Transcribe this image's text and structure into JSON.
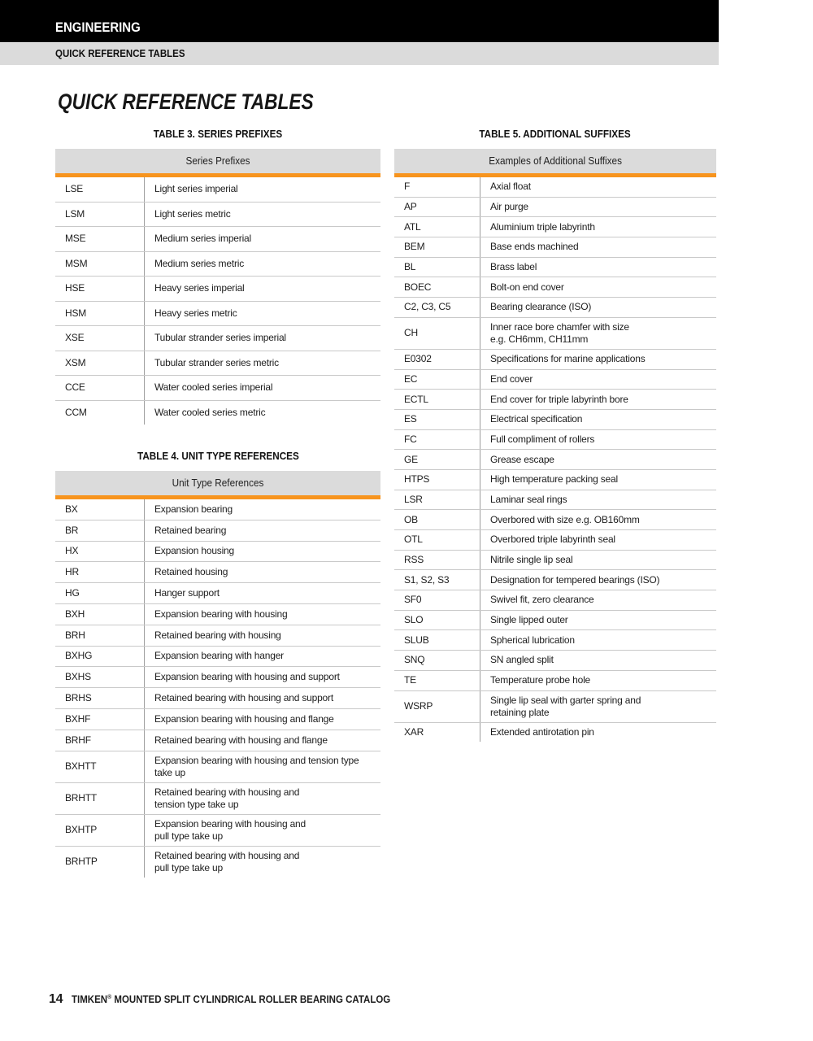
{
  "header": {
    "section": "ENGINEERING",
    "subsection": "QUICK REFERENCE TABLES"
  },
  "page_title": "QUICK REFERENCE TABLES",
  "colors": {
    "accent_orange": "#f7941e",
    "header_bar": "#000000",
    "subheader_bg": "#dbdbdb",
    "table_head_bg": "#dbdbdb",
    "row_separator": "#c9c9c9",
    "column_divider": "#9e9e9e"
  },
  "tables": {
    "t3": {
      "title": "TABLE 3. SERIES PREFIXES",
      "header": "Series Prefixes",
      "rows": [
        {
          "code": "LSE",
          "desc": "Light series imperial"
        },
        {
          "code": "LSM",
          "desc": "Light series metric"
        },
        {
          "code": "MSE",
          "desc": "Medium series imperial"
        },
        {
          "code": "MSM",
          "desc": "Medium series metric"
        },
        {
          "code": "HSE",
          "desc": "Heavy series imperial"
        },
        {
          "code": "HSM",
          "desc": "Heavy series metric"
        },
        {
          "code": "XSE",
          "desc": "Tubular strander series imperial"
        },
        {
          "code": "XSM",
          "desc": "Tubular strander series metric"
        },
        {
          "code": "CCE",
          "desc": "Water cooled series imperial"
        },
        {
          "code": "CCM",
          "desc": "Water cooled series metric"
        }
      ]
    },
    "t4": {
      "title": "TABLE 4. UNIT TYPE REFERENCES",
      "header": "Unit Type References",
      "rows": [
        {
          "code": "BX",
          "desc": "Expansion bearing"
        },
        {
          "code": "BR",
          "desc": "Retained bearing"
        },
        {
          "code": "HX",
          "desc": "Expansion housing"
        },
        {
          "code": "HR",
          "desc": "Retained housing"
        },
        {
          "code": "HG",
          "desc": "Hanger support"
        },
        {
          "code": "BXH",
          "desc": "Expansion bearing with housing"
        },
        {
          "code": "BRH",
          "desc": "Retained bearing with housing"
        },
        {
          "code": "BXHG",
          "desc": "Expansion bearing with hanger"
        },
        {
          "code": "BXHS",
          "desc": "Expansion bearing with housing and support"
        },
        {
          "code": "BRHS",
          "desc": "Retained bearing with housing and support"
        },
        {
          "code": "BXHF",
          "desc": "Expansion bearing with housing and flange"
        },
        {
          "code": "BRHF",
          "desc": "Retained bearing with housing and flange"
        },
        {
          "code": "BXHTT",
          "desc": "Expansion bearing with housing and tension type\ntake up"
        },
        {
          "code": "BRHTT",
          "desc": "Retained bearing with housing and\ntension type take up"
        },
        {
          "code": "BXHTP",
          "desc": "Expansion bearing with housing and\npull type take up"
        },
        {
          "code": "BRHTP",
          "desc": "Retained bearing with housing and\npull type take up"
        }
      ]
    },
    "t5": {
      "title": "TABLE 5. ADDITIONAL SUFFIXES",
      "header": "Examples of Additional Suffixes",
      "rows": [
        {
          "code": "F",
          "desc": "Axial float"
        },
        {
          "code": "AP",
          "desc": "Air purge"
        },
        {
          "code": "ATL",
          "desc": "Aluminium triple labyrinth"
        },
        {
          "code": "BEM",
          "desc": "Base ends machined"
        },
        {
          "code": "BL",
          "desc": "Brass label"
        },
        {
          "code": "BOEC",
          "desc": "Bolt-on end cover"
        },
        {
          "code": "C2, C3, C5",
          "desc": "Bearing clearance (ISO)"
        },
        {
          "code": "CH",
          "desc": "Inner race bore chamfer with size\ne.g. CH6mm, CH11mm"
        },
        {
          "code": "E0302",
          "desc": "Specifications for marine applications"
        },
        {
          "code": "EC",
          "desc": "End cover"
        },
        {
          "code": "ECTL",
          "desc": "End cover for triple labyrinth bore"
        },
        {
          "code": "ES",
          "desc": "Electrical specification"
        },
        {
          "code": "FC",
          "desc": "Full compliment of rollers"
        },
        {
          "code": "GE",
          "desc": "Grease escape"
        },
        {
          "code": "HTPS",
          "desc": "High temperature packing seal"
        },
        {
          "code": "LSR",
          "desc": "Laminar seal rings"
        },
        {
          "code": "OB",
          "desc": "Overbored with size e.g. OB160mm"
        },
        {
          "code": "OTL",
          "desc": "Overbored triple labyrinth seal"
        },
        {
          "code": "RSS",
          "desc": "Nitrile single lip seal"
        },
        {
          "code": "S1, S2, S3",
          "desc": "Designation for tempered bearings (ISO)"
        },
        {
          "code": "SF0",
          "desc": "Swivel fit, zero clearance"
        },
        {
          "code": "SLO",
          "desc": "Single lipped outer"
        },
        {
          "code": "SLUB",
          "desc": "Spherical lubrication"
        },
        {
          "code": "SNQ",
          "desc": "SN angled split"
        },
        {
          "code": "TE",
          "desc": "Temperature probe hole"
        },
        {
          "code": "WSRP",
          "desc": "Single lip seal with garter spring and\nretaining plate"
        },
        {
          "code": "XAR",
          "desc": "Extended antirotation pin"
        }
      ]
    }
  },
  "footer": {
    "page_number": "14",
    "brand": "TIMKEN",
    "registered_mark": "®",
    "text": " MOUNTED SPLIT CYLINDRICAL ROLLER BEARING CATALOG"
  }
}
